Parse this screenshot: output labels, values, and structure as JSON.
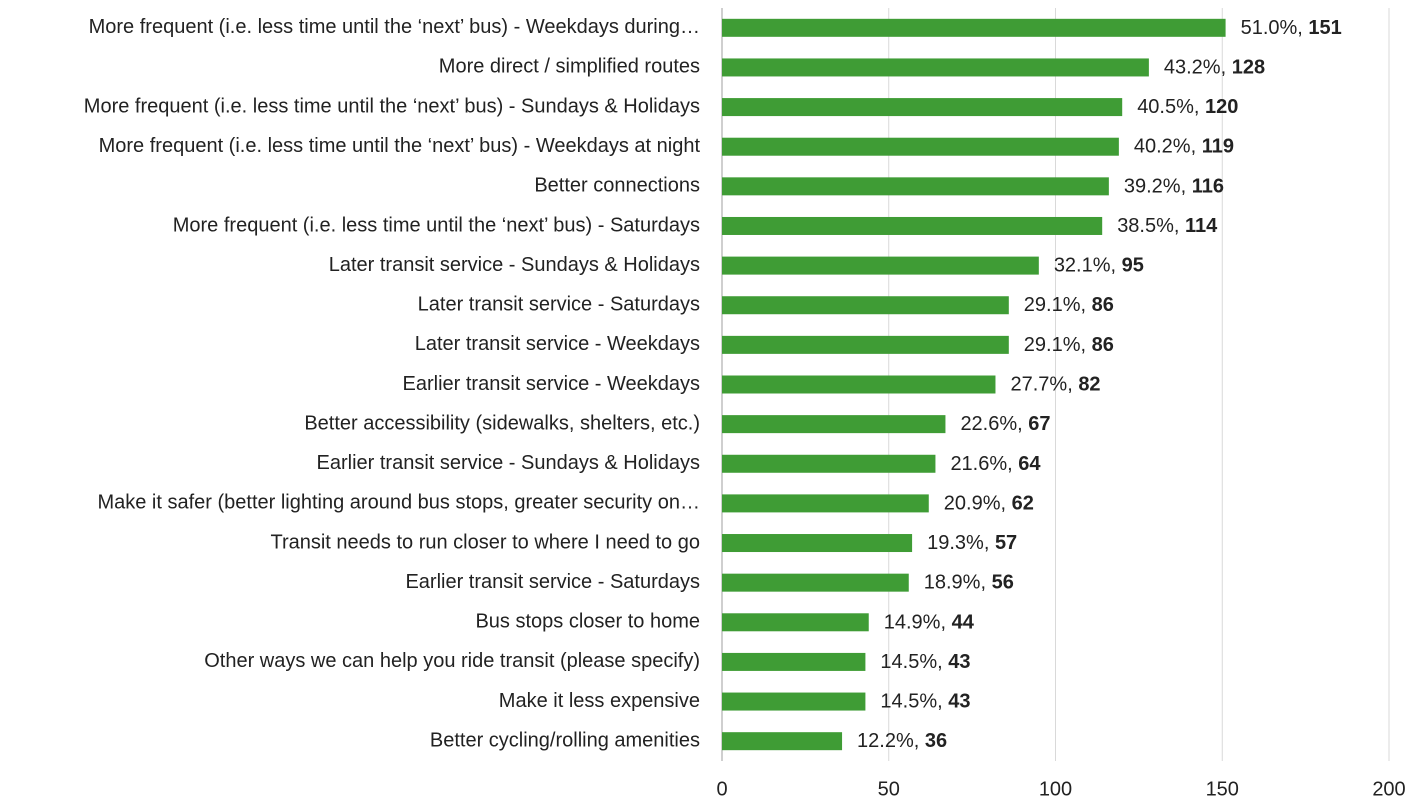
{
  "chart_data": {
    "type": "bar",
    "orientation": "horizontal",
    "categories": [
      "More frequent (i.e. less time until the ‘next’ bus) - Weekdays during…",
      "More direct / simplified routes",
      "More frequent (i.e. less time until the ‘next’ bus) - Sundays & Holidays",
      "More frequent (i.e. less time until the ‘next’ bus) - Weekdays at night",
      "Better connections",
      "More frequent (i.e. less time until the ‘next’ bus) - Saturdays",
      "Later transit service - Sundays & Holidays",
      "Later transit service - Saturdays",
      "Later transit service - Weekdays",
      "Earlier transit service - Weekdays",
      "Better accessibility (sidewalks, shelters, etc.)",
      "Earlier transit service - Sundays & Holidays",
      "Make it safer (better lighting around bus stops, greater security on…",
      "Transit needs to run closer to where I need to go",
      "Earlier transit service - Saturdays",
      "Bus stops closer to home",
      "Other ways we can help you ride transit (please specify)",
      "Make it less expensive",
      "Better cycling/rolling amenities"
    ],
    "values": [
      151,
      128,
      120,
      119,
      116,
      114,
      95,
      86,
      86,
      82,
      67,
      64,
      62,
      57,
      56,
      44,
      43,
      43,
      36
    ],
    "percent_labels": [
      "51.0%",
      "43.2%",
      "40.5%",
      "40.2%",
      "39.2%",
      "38.5%",
      "32.1%",
      "29.1%",
      "29.1%",
      "27.7%",
      "22.6%",
      "21.6%",
      "20.9%",
      "19.3%",
      "18.9%",
      "14.9%",
      "14.5%",
      "14.5%",
      "12.2%"
    ],
    "label_separator": ", ",
    "color": "#3f9c35",
    "xlim": [
      0,
      200
    ],
    "xticks": [
      0,
      50,
      100,
      150,
      200
    ],
    "grid": true
  }
}
